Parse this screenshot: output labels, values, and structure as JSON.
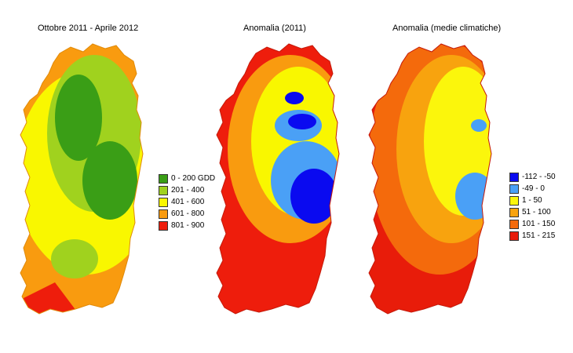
{
  "panels": [
    {
      "title": "Ottobre 2011 - Aprile 2012",
      "legend": [
        {
          "label": "0 - 200 GDD",
          "color": "#3a9e16"
        },
        {
          "label": "201 - 400",
          "color": "#a0d21e"
        },
        {
          "label": "401 - 600",
          "color": "#f9f700"
        },
        {
          "label": "601 - 800",
          "color": "#f99b0f"
        },
        {
          "label": "801 - 900",
          "color": "#ee1d0c"
        }
      ]
    },
    {
      "title": "Anomalia (2011)"
    },
    {
      "title": "Anomalia (medie climatiche)",
      "legend": [
        {
          "label": "-112 - -50",
          "color": "#0a0af0"
        },
        {
          "label": "-49 - 0",
          "color": "#4aa0f6"
        },
        {
          "label": "1 - 50",
          "color": "#fbf60c"
        },
        {
          "label": "51 - 100",
          "color": "#f8a30e"
        },
        {
          "label": "101 - 150",
          "color": "#f46a0c"
        },
        {
          "label": "151 - 215",
          "color": "#e81c0a"
        }
      ]
    }
  ]
}
